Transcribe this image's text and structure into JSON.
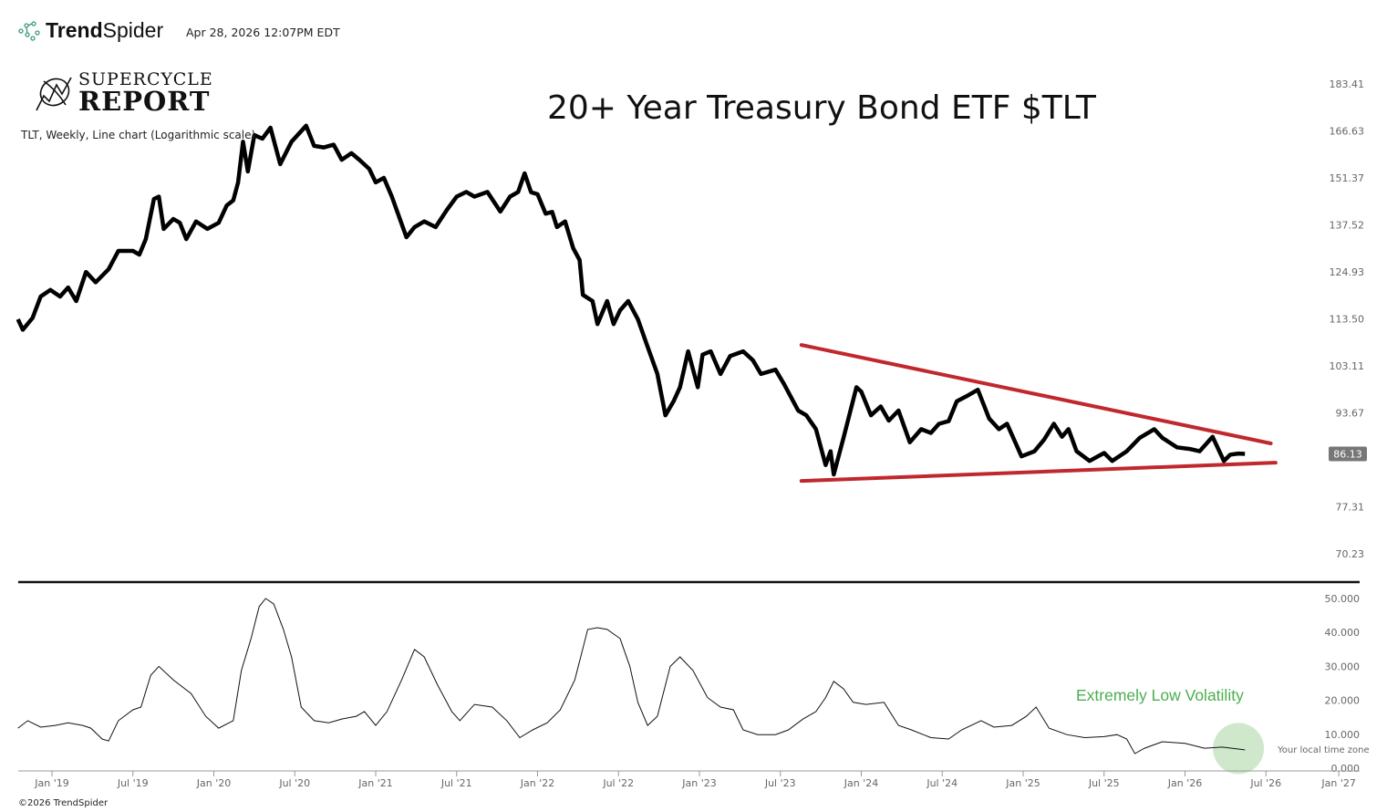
{
  "header": {
    "brand_bold": "Trend",
    "brand_light": "Spider",
    "timestamp": "Apr 28, 2026 12:07PM EDT",
    "logo_line1": "SUPERCYCLE",
    "logo_line2": "REPORT",
    "description": "TLT, Weekly, Line chart (Logarithmic scale)",
    "copyright": "©2026 TrendSpider",
    "timezone_note": "Your local time zone"
  },
  "colors": {
    "price": "#000000",
    "trendline": "#c0282d",
    "annotation": "#4caf50",
    "highlight": "#cfe8cc",
    "badge": "#777777"
  },
  "chart_data": [
    {
      "type": "line",
      "title": "20+ Year Treasury Bond ETF $TLT",
      "scale": "log",
      "ylim": [
        70.23,
        183.41
      ],
      "y_ticks": [
        "183.41",
        "166.63",
        "151.37",
        "137.52",
        "124.93",
        "113.50",
        "103.11",
        "93.67",
        "77.31",
        "70.23"
      ],
      "current_value_label": "86.13",
      "current_value": 86.13,
      "x_ticks": [
        {
          "label": "Jan '19",
          "t": 2019.0
        },
        {
          "label": "Jul '19",
          "t": 2019.5
        },
        {
          "label": "Jan '20",
          "t": 2020.0
        },
        {
          "label": "Jul '20",
          "t": 2020.5
        },
        {
          "label": "Jan '21",
          "t": 2021.0
        },
        {
          "label": "Jul '21",
          "t": 2021.5
        },
        {
          "label": "Jan '22",
          "t": 2022.0
        },
        {
          "label": "Jul '22",
          "t": 2022.5
        },
        {
          "label": "Jan '23",
          "t": 2023.0
        },
        {
          "label": "Jul '23",
          "t": 2023.5
        },
        {
          "label": "Jan '24",
          "t": 2024.0
        },
        {
          "label": "Jul '24",
          "t": 2024.5
        },
        {
          "label": "Jan '25",
          "t": 2025.0
        },
        {
          "label": "Jul '25",
          "t": 2025.5
        },
        {
          "label": "Jan '26",
          "t": 2026.0
        },
        {
          "label": "Jul '26",
          "t": 2026.5
        },
        {
          "label": "Jan '27",
          "t": 2026.95
        }
      ],
      "series": [
        {
          "name": "TLT",
          "points": [
            [
              2018.79,
              113.4
            ],
            [
              2018.82,
              111
            ],
            [
              2018.88,
              113.7
            ],
            [
              2018.93,
              118.8
            ],
            [
              2018.99,
              120.4
            ],
            [
              2019.05,
              118.8
            ],
            [
              2019.1,
              121
            ],
            [
              2019.15,
              117.7
            ],
            [
              2019.21,
              124.9
            ],
            [
              2019.27,
              122.3
            ],
            [
              2019.35,
              125.6
            ],
            [
              2019.41,
              130.4
            ],
            [
              2019.5,
              130.4
            ],
            [
              2019.54,
              129.4
            ],
            [
              2019.58,
              133.6
            ],
            [
              2019.63,
              145
            ],
            [
              2019.66,
              145.7
            ],
            [
              2019.69,
              136.4
            ],
            [
              2019.75,
              139.2
            ],
            [
              2019.79,
              138.1
            ],
            [
              2019.83,
              133.6
            ],
            [
              2019.89,
              138.5
            ],
            [
              2019.96,
              136.4
            ],
            [
              2020.03,
              138.1
            ],
            [
              2020.08,
              143.1
            ],
            [
              2020.12,
              144.6
            ],
            [
              2020.15,
              150
            ],
            [
              2020.18,
              163
            ],
            [
              2020.21,
              153.4
            ],
            [
              2020.25,
              165.2
            ],
            [
              2020.3,
              164
            ],
            [
              2020.35,
              167.7
            ],
            [
              2020.41,
              155.7
            ],
            [
              2020.48,
              163
            ],
            [
              2020.57,
              168.4
            ],
            [
              2020.62,
              161.6
            ],
            [
              2020.68,
              161.1
            ],
            [
              2020.74,
              162
            ],
            [
              2020.79,
              157.1
            ],
            [
              2020.85,
              159.2
            ],
            [
              2020.9,
              157
            ],
            [
              2020.96,
              154.2
            ],
            [
              2021.0,
              150
            ],
            [
              2021.05,
              151.4
            ],
            [
              2021.1,
              145.7
            ],
            [
              2021.19,
              134.1
            ],
            [
              2021.24,
              136.9
            ],
            [
              2021.3,
              138.5
            ],
            [
              2021.37,
              136.9
            ],
            [
              2021.44,
              141.8
            ],
            [
              2021.5,
              145.7
            ],
            [
              2021.56,
              147.1
            ],
            [
              2021.61,
              145.7
            ],
            [
              2021.69,
              147.1
            ],
            [
              2021.77,
              141.3
            ],
            [
              2021.83,
              145.7
            ],
            [
              2021.88,
              147.1
            ],
            [
              2021.92,
              152.8
            ],
            [
              2021.96,
              147
            ],
            [
              2022.0,
              146.4
            ],
            [
              2022.05,
              140.7
            ],
            [
              2022.09,
              141.2
            ],
            [
              2022.12,
              136.9
            ],
            [
              2022.17,
              138.5
            ],
            [
              2022.22,
              131.1
            ],
            [
              2022.26,
              128
            ],
            [
              2022.28,
              119.2
            ],
            [
              2022.34,
              117.7
            ],
            [
              2022.37,
              112.3
            ],
            [
              2022.43,
              117.7
            ],
            [
              2022.47,
              112.3
            ],
            [
              2022.51,
              115.5
            ],
            [
              2022.56,
              117.7
            ],
            [
              2022.62,
              113.4
            ],
            [
              2022.68,
              107.2
            ],
            [
              2022.74,
              101.4
            ],
            [
              2022.79,
              93.2
            ],
            [
              2022.84,
              95.9
            ],
            [
              2022.88,
              98.7
            ],
            [
              2022.93,
              106.2
            ],
            [
              2022.99,
              98.7
            ],
            [
              2023.02,
              105.5
            ],
            [
              2023.07,
              106.2
            ],
            [
              2023.13,
              101.4
            ],
            [
              2023.19,
              105.2
            ],
            [
              2023.27,
              106.2
            ],
            [
              2023.33,
              104.3
            ],
            [
              2023.38,
              101.4
            ],
            [
              2023.47,
              102.3
            ],
            [
              2023.52,
              99.5
            ],
            [
              2023.61,
              94.1
            ],
            [
              2023.66,
              93.2
            ],
            [
              2023.72,
              90.6
            ],
            [
              2023.78,
              84.2
            ],
            [
              2023.81,
              86.6
            ],
            [
              2023.83,
              82.6
            ],
            [
              2023.89,
              89
            ],
            [
              2023.97,
              98.7
            ],
            [
              2024.0,
              97.8
            ],
            [
              2024.06,
              93.2
            ],
            [
              2024.12,
              94.9
            ],
            [
              2024.17,
              92.2
            ],
            [
              2024.23,
              94.1
            ],
            [
              2024.3,
              88.2
            ],
            [
              2024.37,
              90.6
            ],
            [
              2024.43,
              89.9
            ],
            [
              2024.48,
              91.6
            ],
            [
              2024.54,
              92.1
            ],
            [
              2024.59,
              95.9
            ],
            [
              2024.65,
              96.9
            ],
            [
              2024.72,
              98.2
            ],
            [
              2024.79,
              92.6
            ],
            [
              2024.85,
              90.6
            ],
            [
              2024.9,
              91.6
            ],
            [
              2024.99,
              85.7
            ],
            [
              2025.07,
              86.6
            ],
            [
              2025.13,
              88.7
            ],
            [
              2025.19,
              91.6
            ],
            [
              2025.24,
              89.2
            ],
            [
              2025.28,
              90.6
            ],
            [
              2025.33,
              86.6
            ],
            [
              2025.41,
              84.9
            ],
            [
              2025.5,
              86.3
            ],
            [
              2025.55,
              84.9
            ],
            [
              2025.64,
              86.6
            ],
            [
              2025.72,
              89
            ],
            [
              2025.81,
              90.6
            ],
            [
              2025.86,
              89
            ],
            [
              2025.95,
              87.3
            ],
            [
              2026.03,
              87
            ],
            [
              2026.09,
              86.6
            ],
            [
              2026.17,
              89.2
            ],
            [
              2026.24,
              84.9
            ],
            [
              2026.28,
              86
            ],
            [
              2026.33,
              86.2
            ],
            [
              2026.37,
              86.13
            ]
          ]
        }
      ],
      "trendlines": [
        {
          "name": "upper-resistance",
          "from": [
            2023.63,
            107.6
          ],
          "to": [
            2026.53,
            88.0
          ]
        },
        {
          "name": "lower-support",
          "from": [
            2023.63,
            81.5
          ],
          "to": [
            2026.56,
            84.6
          ]
        }
      ]
    },
    {
      "type": "line",
      "title": "Volatility",
      "ylim": [
        0,
        50
      ],
      "y_ticks": [
        "50.000",
        "40.000",
        "30.000",
        "20.000",
        "10.000",
        "0.000"
      ],
      "annotation": "Extremely Low Volatility",
      "highlight_at": [
        2026.33,
        5.8
      ],
      "series": [
        {
          "name": "volatility",
          "points": [
            [
              2018.79,
              11.8
            ],
            [
              2018.85,
              14
            ],
            [
              2018.93,
              12.1
            ],
            [
              2019.02,
              12.6
            ],
            [
              2019.1,
              13.4
            ],
            [
              2019.19,
              12.6
            ],
            [
              2019.24,
              11.8
            ],
            [
              2019.31,
              8.6
            ],
            [
              2019.35,
              8
            ],
            [
              2019.41,
              14
            ],
            [
              2019.5,
              17.2
            ],
            [
              2019.55,
              18
            ],
            [
              2019.61,
              27.4
            ],
            [
              2019.66,
              30
            ],
            [
              2019.75,
              26
            ],
            [
              2019.86,
              22
            ],
            [
              2019.95,
              15.3
            ],
            [
              2020.03,
              11.8
            ],
            [
              2020.12,
              14
            ],
            [
              2020.17,
              28.8
            ],
            [
              2020.23,
              38.2
            ],
            [
              2020.28,
              47.6
            ],
            [
              2020.32,
              50
            ],
            [
              2020.37,
              48.4
            ],
            [
              2020.43,
              40.9
            ],
            [
              2020.48,
              32.8
            ],
            [
              2020.54,
              18
            ],
            [
              2020.62,
              14
            ],
            [
              2020.71,
              13.4
            ],
            [
              2020.79,
              14.5
            ],
            [
              2020.88,
              15.3
            ],
            [
              2020.93,
              16.7
            ],
            [
              2021.0,
              12.6
            ],
            [
              2021.07,
              16.7
            ],
            [
              2021.16,
              26
            ],
            [
              2021.24,
              35
            ],
            [
              2021.3,
              32.8
            ],
            [
              2021.38,
              24.7
            ],
            [
              2021.47,
              16.7
            ],
            [
              2021.52,
              14
            ],
            [
              2021.61,
              18.8
            ],
            [
              2021.72,
              18
            ],
            [
              2021.81,
              14
            ],
            [
              2021.89,
              9
            ],
            [
              2021.97,
              11.3
            ],
            [
              2022.06,
              13.4
            ],
            [
              2022.14,
              17.2
            ],
            [
              2022.23,
              26
            ],
            [
              2022.31,
              40.9
            ],
            [
              2022.37,
              41.4
            ],
            [
              2022.43,
              40.9
            ],
            [
              2022.51,
              38.2
            ],
            [
              2022.57,
              30
            ],
            [
              2022.62,
              19.4
            ],
            [
              2022.68,
              12.6
            ],
            [
              2022.74,
              15.3
            ],
            [
              2022.82,
              30
            ],
            [
              2022.88,
              32.8
            ],
            [
              2022.96,
              28.8
            ],
            [
              2023.05,
              20.8
            ],
            [
              2023.13,
              18
            ],
            [
              2023.21,
              17.2
            ],
            [
              2023.27,
              11.3
            ],
            [
              2023.36,
              9.9
            ],
            [
              2023.47,
              9.9
            ],
            [
              2023.55,
              11.3
            ],
            [
              2023.64,
              14.5
            ],
            [
              2023.72,
              16.7
            ],
            [
              2023.78,
              20.8
            ],
            [
              2023.83,
              25.6
            ],
            [
              2023.89,
              23.4
            ],
            [
              2023.95,
              19.4
            ],
            [
              2024.03,
              18.8
            ],
            [
              2024.14,
              19.4
            ],
            [
              2024.23,
              12.6
            ],
            [
              2024.31,
              11.3
            ],
            [
              2024.43,
              9
            ],
            [
              2024.54,
              8.6
            ],
            [
              2024.62,
              11.3
            ],
            [
              2024.74,
              14
            ],
            [
              2024.82,
              12.1
            ],
            [
              2024.93,
              12.6
            ],
            [
              2025.02,
              15.3
            ],
            [
              2025.08,
              18
            ],
            [
              2025.16,
              11.8
            ],
            [
              2025.27,
              9.9
            ],
            [
              2025.38,
              9
            ],
            [
              2025.5,
              9.3
            ],
            [
              2025.58,
              9.9
            ],
            [
              2025.64,
              8.6
            ],
            [
              2025.69,
              4.3
            ],
            [
              2025.75,
              5.9
            ],
            [
              2025.86,
              7.8
            ],
            [
              2026.0,
              7.3
            ],
            [
              2026.12,
              5.9
            ],
            [
              2026.23,
              6.2
            ],
            [
              2026.37,
              5.4
            ]
          ]
        }
      ]
    }
  ]
}
